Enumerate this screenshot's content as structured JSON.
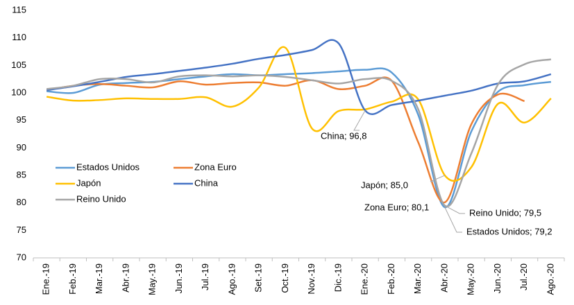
{
  "chart_data": {
    "type": "line",
    "categories": [
      "Ene.-19",
      "Feb.-19",
      "Mar.-19",
      "Abr.-19",
      "May.-19",
      "Jun.-19",
      "Jul.-19",
      "Ago.-19",
      "Set.-19",
      "Oct.-19",
      "Nov.-19",
      "Dic.-19",
      "Ene.-20",
      "Feb.-20",
      "Mar.-20",
      "Abr.-20",
      "May.-20",
      "Jun.-20",
      "Jul.-20",
      "Ago.-20"
    ],
    "ylim": [
      70,
      115
    ],
    "yticks": [
      70,
      75,
      80,
      85,
      90,
      95,
      100,
      105,
      110,
      115
    ],
    "grid": false,
    "series": [
      {
        "name": "Estados Unidos",
        "color": "#5b9bd5",
        "values": [
          100.3,
          100.0,
          101.5,
          101.8,
          102.0,
          102.5,
          103.0,
          103.4,
          103.2,
          103.4,
          103.6,
          103.9,
          104.2,
          103.7,
          96.0,
          79.2,
          93.0,
          100.2,
          101.4,
          102.0
        ],
        "value_labels": [
          null,
          null,
          null,
          null,
          null,
          null,
          null,
          null,
          null,
          null,
          null,
          null,
          null,
          null,
          null,
          "Estados Unidos; 79,2",
          null,
          null,
          null,
          null
        ]
      },
      {
        "name": "Zona Euro",
        "color": "#ed7d31",
        "values": [
          100.5,
          101.3,
          101.6,
          101.3,
          101.0,
          102.1,
          101.5,
          101.8,
          101.9,
          101.3,
          102.3,
          100.7,
          101.3,
          102.2,
          91.0,
          80.1,
          94.3,
          99.7,
          98.5,
          null
        ],
        "value_labels": [
          null,
          null,
          null,
          null,
          null,
          null,
          null,
          null,
          null,
          null,
          null,
          null,
          null,
          null,
          null,
          "Zona Euro; 80,1",
          null,
          null,
          null,
          null
        ]
      },
      {
        "name": "Japón",
        "color": "#ffc000",
        "values": [
          99.3,
          98.6,
          98.7,
          99.0,
          98.9,
          98.9,
          99.2,
          97.5,
          101.0,
          108.2,
          93.5,
          96.7,
          97.0,
          98.4,
          98.8,
          85.0,
          86.5,
          98.0,
          94.6,
          99.0
        ],
        "value_labels": [
          null,
          null,
          null,
          null,
          null,
          null,
          null,
          null,
          null,
          null,
          null,
          null,
          null,
          null,
          null,
          "Japón; 85,0",
          null,
          null,
          null,
          null
        ]
      },
      {
        "name": "China",
        "color": "#4472c4",
        "values": [
          100.5,
          101.2,
          102.0,
          102.9,
          103.4,
          104.0,
          104.6,
          105.3,
          106.2,
          106.9,
          107.8,
          109.0,
          96.8,
          97.8,
          98.6,
          99.5,
          100.4,
          101.7,
          102.1,
          103.4
        ],
        "value_labels": [
          null,
          null,
          null,
          null,
          null,
          null,
          null,
          null,
          null,
          null,
          null,
          null,
          "China; 96,8",
          null,
          null,
          null,
          null,
          null,
          null,
          null
        ]
      },
      {
        "name": "Reino Unido",
        "color": "#a5a5a5",
        "values": [
          100.7,
          101.3,
          102.5,
          102.5,
          101.9,
          103.0,
          103.2,
          103.0,
          103.2,
          102.9,
          102.3,
          101.7,
          102.5,
          102.2,
          97.0,
          79.5,
          89.0,
          101.5,
          105.2,
          106.1
        ],
        "value_labels": [
          null,
          null,
          null,
          null,
          null,
          null,
          null,
          null,
          null,
          null,
          null,
          null,
          null,
          null,
          null,
          "Reino Unido; 79,5",
          null,
          null,
          null,
          null
        ]
      }
    ]
  }
}
